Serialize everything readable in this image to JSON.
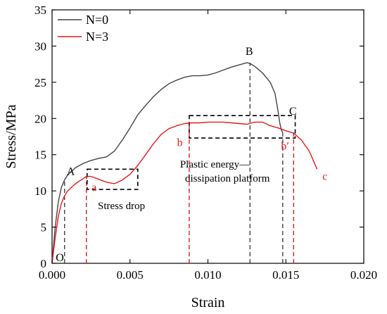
{
  "chart_data": {
    "type": "line",
    "xlabel": "Strain",
    "ylabel": "Stress/MPa",
    "xlim": [
      0,
      0.02
    ],
    "ylim": [
      0,
      35
    ],
    "xticks": [
      "0.000",
      "0.005",
      "0.010",
      "0.015",
      "0.020"
    ],
    "yticks": [
      "0",
      "5",
      "10",
      "15",
      "20",
      "25",
      "30",
      "35"
    ],
    "legend": {
      "placement": "top-left"
    },
    "series": [
      {
        "name": "N=0",
        "color": "#444444",
        "x": [
          0,
          0.0002,
          0.0004,
          0.0006,
          0.0008,
          0.001,
          0.0015,
          0.002,
          0.0025,
          0.003,
          0.0035,
          0.004,
          0.0045,
          0.005,
          0.0055,
          0.006,
          0.0065,
          0.007,
          0.0075,
          0.008,
          0.0085,
          0.009,
          0.0095,
          0.01,
          0.0105,
          0.011,
          0.0115,
          0.012,
          0.0125,
          0.0127,
          0.013,
          0.0135,
          0.014,
          0.0143,
          0.0145,
          0.0146,
          0.0147,
          0.0148
        ],
        "y": [
          0,
          5,
          8.5,
          10.5,
          11.5,
          12.2,
          13.2,
          13.8,
          14.2,
          14.5,
          14.7,
          15.5,
          17.0,
          18.7,
          20.5,
          21.8,
          23.0,
          24.0,
          24.8,
          25.3,
          25.7,
          25.9,
          25.9,
          26.0,
          26.3,
          26.7,
          27.1,
          27.4,
          27.7,
          27.6,
          27.2,
          26.3,
          25.0,
          23.5,
          21.0,
          19.5,
          18.5,
          18.0
        ]
      },
      {
        "name": "N=3",
        "color": "#e8191e",
        "x": [
          0,
          0.0002,
          0.0004,
          0.0006,
          0.0008,
          0.001,
          0.0015,
          0.002,
          0.0022,
          0.0025,
          0.003,
          0.0035,
          0.004,
          0.0045,
          0.005,
          0.0055,
          0.006,
          0.0065,
          0.007,
          0.0075,
          0.008,
          0.0085,
          0.009,
          0.0095,
          0.01,
          0.0105,
          0.011,
          0.0115,
          0.012,
          0.0125,
          0.013,
          0.0135,
          0.014,
          0.0145,
          0.015,
          0.0155,
          0.016,
          0.0165,
          0.017
        ],
        "y": [
          0,
          3.5,
          6.5,
          8.3,
          9.3,
          10.0,
          11.0,
          11.7,
          12.0,
          12.0,
          11.6,
          11.2,
          11.0,
          11.5,
          12.3,
          13.5,
          15.0,
          16.5,
          17.8,
          18.6,
          19.0,
          19.3,
          19.4,
          19.4,
          19.5,
          19.5,
          19.5,
          19.4,
          19.3,
          19.2,
          19.5,
          19.5,
          19.0,
          18.7,
          18.3,
          18.0,
          17.0,
          15.5,
          13.0
        ]
      }
    ],
    "annotations": {
      "point_labels": [
        {
          "text": "O",
          "x": 0.0005,
          "y": 0.3,
          "color": "#000000"
        },
        {
          "text": "A",
          "x": 0.0012,
          "y": 12.2,
          "color": "#000000"
        },
        {
          "text": "B",
          "x": 0.01265,
          "y": 28.8,
          "color": "#000000"
        },
        {
          "text": "C",
          "x": 0.01545,
          "y": 20.5,
          "color": "#000000"
        },
        {
          "text": "a",
          "x": 0.0027,
          "y": 10.0,
          "color": "#e8191e"
        },
        {
          "text": "b",
          "x": 0.0082,
          "y": 16.2,
          "color": "#e8191e"
        },
        {
          "text": "b′",
          "x": 0.01495,
          "y": 15.7,
          "color": "#e8191e"
        },
        {
          "text": "c",
          "x": 0.0175,
          "y": 11.5,
          "color": "#e8191e"
        }
      ],
      "text_labels": [
        {
          "text": "Stress drop",
          "x": 0.00445,
          "y": 7.5
        },
        {
          "text": "Plastic energy—",
          "x": 0.01045,
          "y": 13.2
        },
        {
          "text": "dissipation platform",
          "x": 0.01125,
          "y": 11.3
        }
      ],
      "boxes": [
        {
          "x0": 0.00225,
          "x1": 0.0055,
          "y0": 10.2,
          "y1": 13.0
        },
        {
          "x0": 0.0088,
          "x1": 0.0156,
          "y0": 17.3,
          "y1": 20.4
        }
      ],
      "vlines": [
        {
          "x": 0.0008,
          "ymax": 11.5,
          "color": "#444444"
        },
        {
          "x": 0.0022,
          "ymax": 12.0,
          "color": "#e8191e"
        },
        {
          "x": 0.0088,
          "ymax": 19.4,
          "color": "#e8191e"
        },
        {
          "x": 0.0127,
          "ymax": 27.7,
          "color": "#444444"
        },
        {
          "x": 0.0148,
          "ymax": 18.0,
          "color": "#444444"
        },
        {
          "x": 0.0155,
          "ymax": 18.0,
          "color": "#e8191e"
        }
      ]
    }
  }
}
